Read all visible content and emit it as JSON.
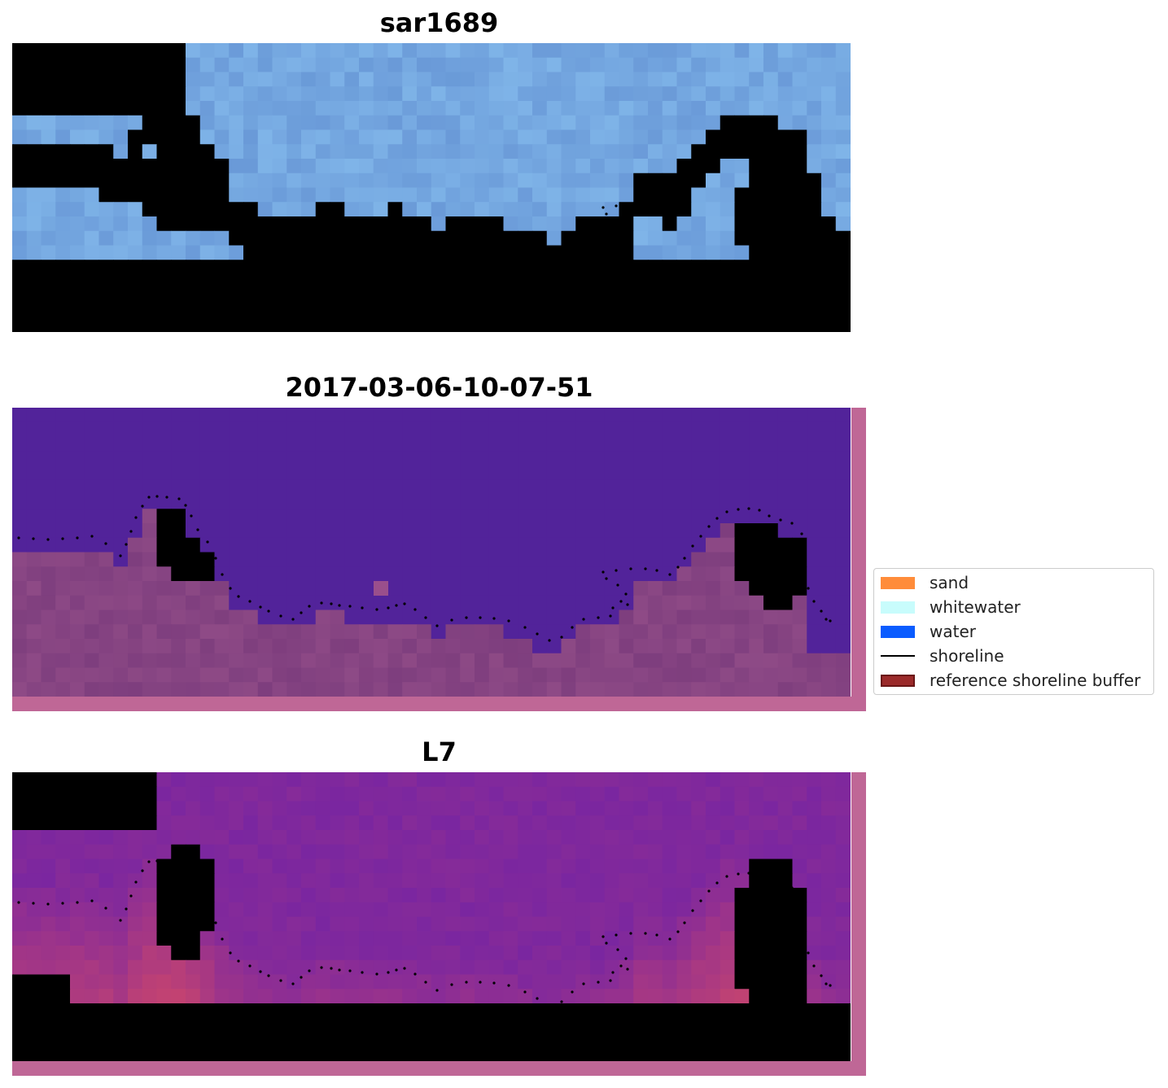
{
  "panels": [
    {
      "title": "sar1689",
      "style": "rgb"
    },
    {
      "title": "2017-03-06-10-07-51",
      "style": "classified"
    },
    {
      "title": "L7",
      "style": "index"
    }
  ],
  "legend": {
    "items": [
      {
        "label": "sand",
        "color": "#ff8c3a",
        "kind": "patch"
      },
      {
        "label": "whitewater",
        "color": "#c8fcfc",
        "kind": "patch"
      },
      {
        "label": "water",
        "color": "#0a5cff",
        "kind": "patch"
      },
      {
        "label": "shoreline",
        "color": "#000000",
        "kind": "line"
      },
      {
        "label": "reference shoreline buffer",
        "color": "#9b2a2a",
        "kind": "patch"
      }
    ]
  },
  "colors": {
    "water_class": "#52239a",
    "buffer_overlay": "#bf6796",
    "index_low": "#5a10a0",
    "index_high": "#c00535",
    "rgb_base": "#6f9fdb"
  }
}
